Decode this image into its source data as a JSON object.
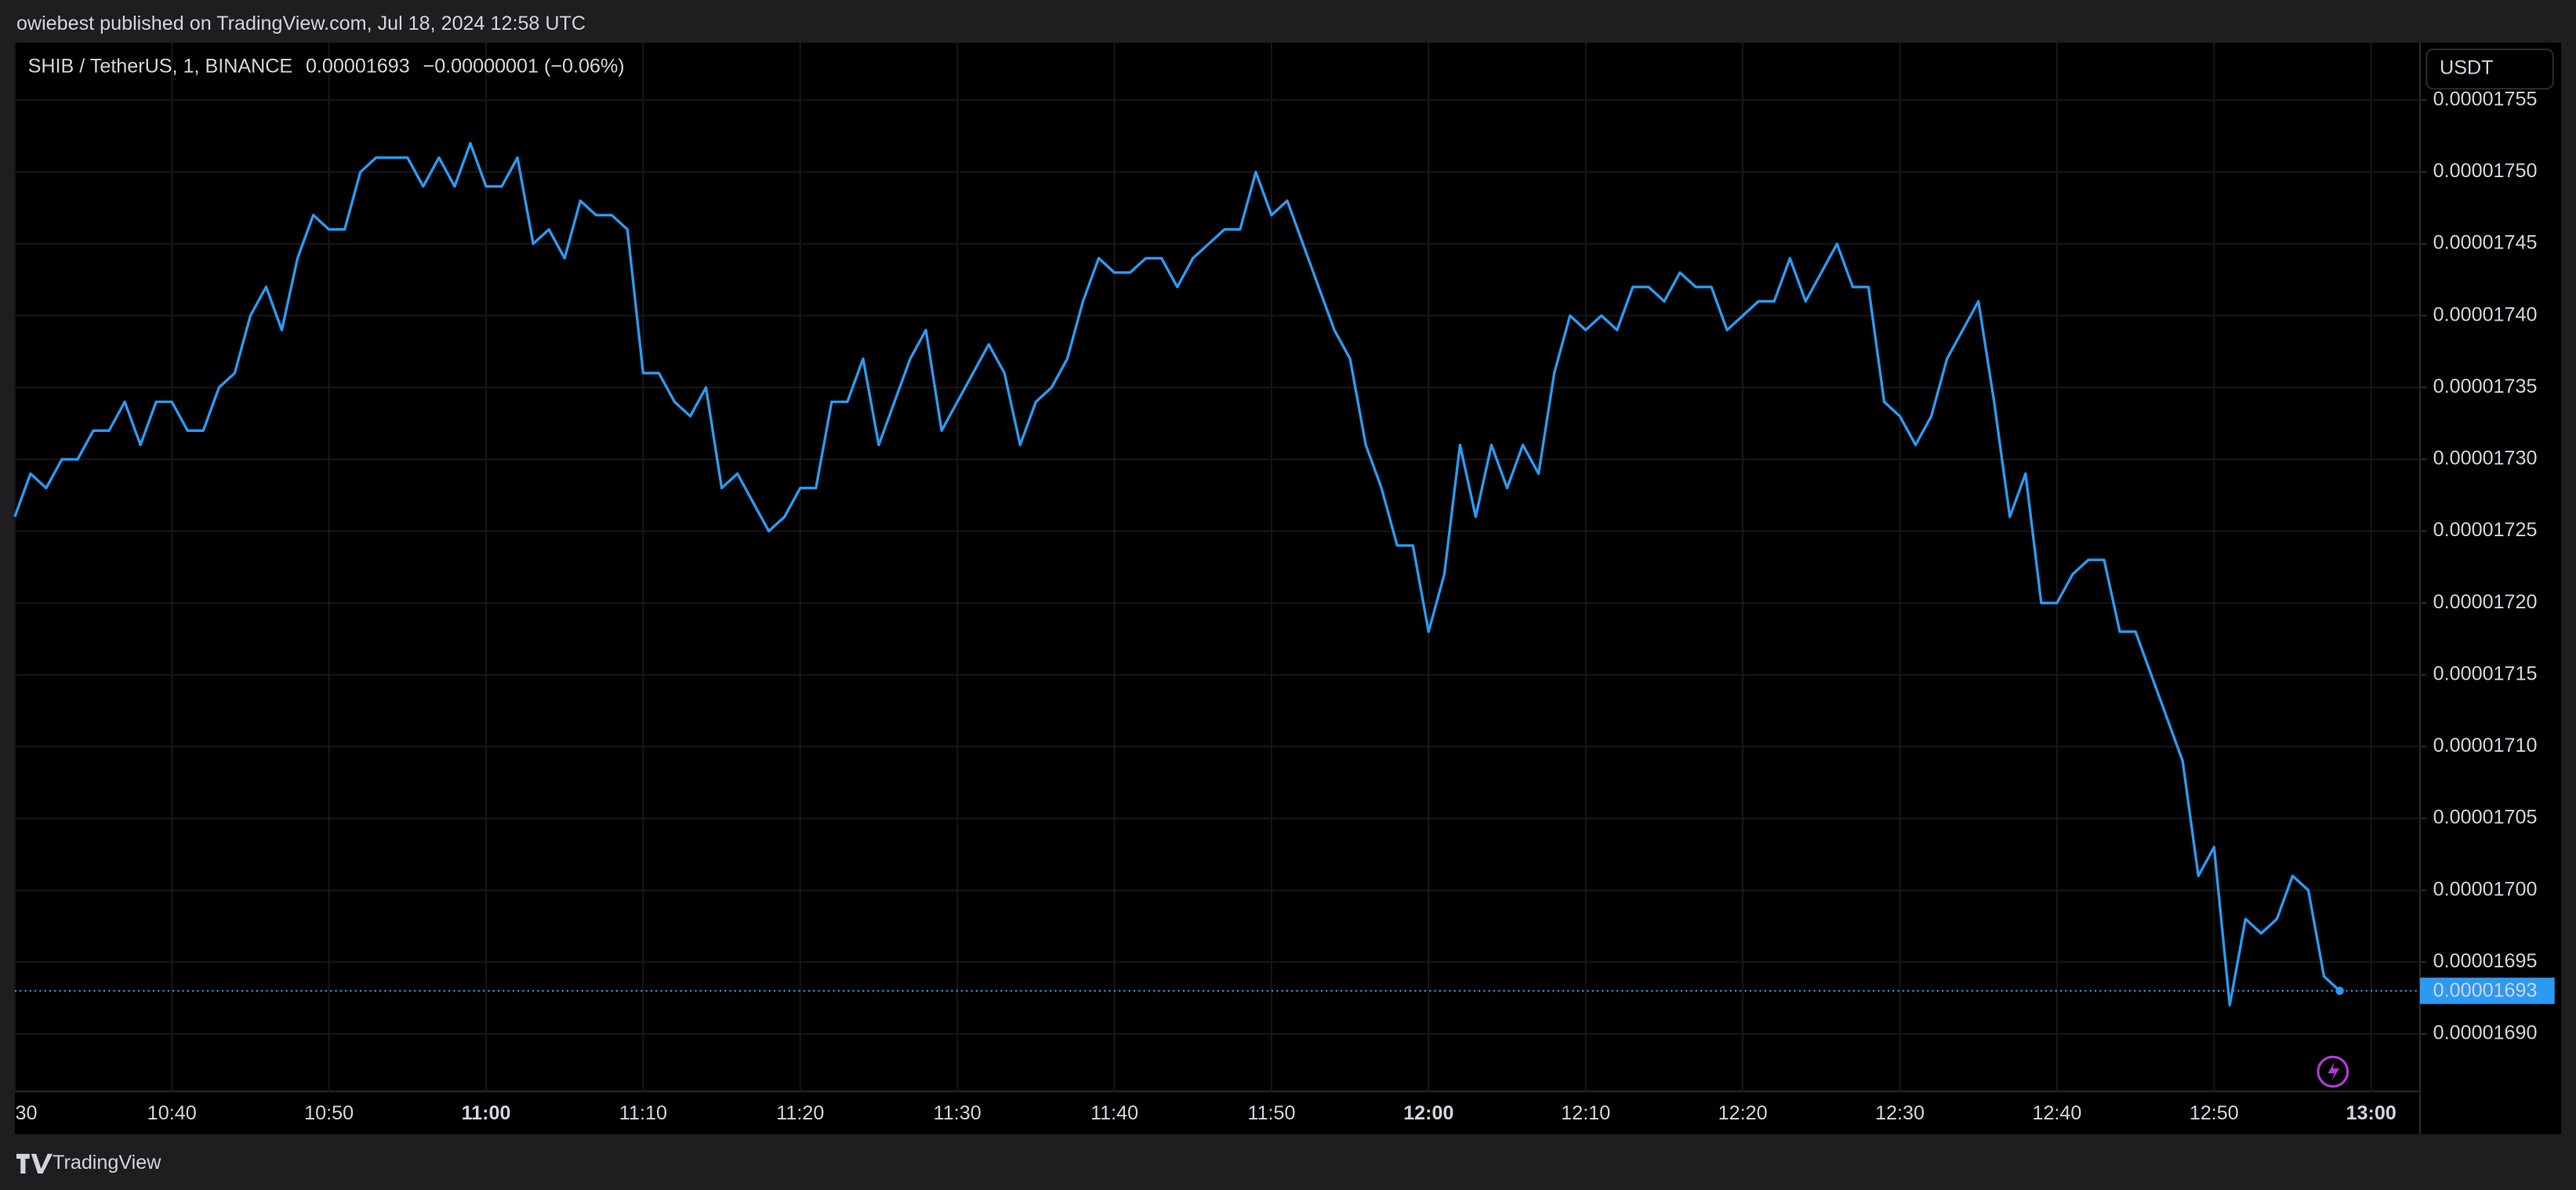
{
  "header": {
    "byline": "owiebest published on TradingView.com, Jul 18, 2024 12:58 UTC"
  },
  "chart_data": {
    "type": "line",
    "symbol": "SHIB / TetherUS, 1, BINANCE",
    "change": "−0.00000001 (−0.06%)",
    "currency": "USDT",
    "x": [
      "10:30",
      "10:31",
      "10:32",
      "10:33",
      "10:34",
      "10:35",
      "10:36",
      "10:37",
      "10:38",
      "10:39",
      "10:40",
      "10:41",
      "10:42",
      "10:43",
      "10:44",
      "10:45",
      "10:46",
      "10:47",
      "10:48",
      "10:49",
      "10:50",
      "10:51",
      "10:52",
      "10:53",
      "10:54",
      "10:55",
      "10:56",
      "10:57",
      "10:58",
      "10:59",
      "11:00",
      "11:01",
      "11:02",
      "11:03",
      "11:04",
      "11:05",
      "11:06",
      "11:07",
      "11:08",
      "11:09",
      "11:10",
      "11:11",
      "11:12",
      "11:13",
      "11:14",
      "11:15",
      "11:16",
      "11:17",
      "11:18",
      "11:19",
      "11:20",
      "11:21",
      "11:22",
      "11:23",
      "11:24",
      "11:25",
      "11:26",
      "11:27",
      "11:28",
      "11:29",
      "11:30",
      "11:31",
      "11:32",
      "11:33",
      "11:34",
      "11:35",
      "11:36",
      "11:37",
      "11:38",
      "11:39",
      "11:40",
      "11:41",
      "11:42",
      "11:43",
      "11:44",
      "11:45",
      "11:46",
      "11:47",
      "11:48",
      "11:49",
      "11:50",
      "11:51",
      "11:52",
      "11:53",
      "11:54",
      "11:55",
      "11:56",
      "11:57",
      "11:58",
      "11:59",
      "12:00",
      "12:01",
      "12:02",
      "12:03",
      "12:04",
      "12:05",
      "12:06",
      "12:07",
      "12:08",
      "12:09",
      "12:10",
      "12:11",
      "12:12",
      "12:13",
      "12:14",
      "12:15",
      "12:16",
      "12:17",
      "12:18",
      "12:19",
      "12:20",
      "12:21",
      "12:22",
      "12:23",
      "12:24",
      "12:25",
      "12:26",
      "12:27",
      "12:28",
      "12:29",
      "12:30",
      "12:31",
      "12:32",
      "12:33",
      "12:34",
      "12:35",
      "12:36",
      "12:37",
      "12:38",
      "12:39",
      "12:40",
      "12:41",
      "12:42",
      "12:43",
      "12:44",
      "12:45",
      "12:46",
      "12:47",
      "12:48",
      "12:49",
      "12:50",
      "12:51",
      "12:52",
      "12:53",
      "12:54",
      "12:55",
      "12:56",
      "12:57",
      "12:58"
    ],
    "series": [
      {
        "name": "SHIB / TetherUS",
        "color": "#2b9af3",
        "values": [
          1.726e-05,
          1.729e-05,
          1.728e-05,
          1.73e-05,
          1.73e-05,
          1.732e-05,
          1.732e-05,
          1.734e-05,
          1.731e-05,
          1.734e-05,
          1.734e-05,
          1.732e-05,
          1.732e-05,
          1.735e-05,
          1.736e-05,
          1.74e-05,
          1.742e-05,
          1.739e-05,
          1.744e-05,
          1.747e-05,
          1.746e-05,
          1.746e-05,
          1.75e-05,
          1.751e-05,
          1.751e-05,
          1.751e-05,
          1.749e-05,
          1.751e-05,
          1.749e-05,
          1.752e-05,
          1.749e-05,
          1.749e-05,
          1.751e-05,
          1.745e-05,
          1.746e-05,
          1.744e-05,
          1.748e-05,
          1.747e-05,
          1.747e-05,
          1.746e-05,
          1.736e-05,
          1.736e-05,
          1.734e-05,
          1.733e-05,
          1.735e-05,
          1.728e-05,
          1.729e-05,
          1.727e-05,
          1.725e-05,
          1.726e-05,
          1.728e-05,
          1.728e-05,
          1.734e-05,
          1.734e-05,
          1.737e-05,
          1.731e-05,
          1.734e-05,
          1.737e-05,
          1.739e-05,
          1.732e-05,
          1.734e-05,
          1.736e-05,
          1.738e-05,
          1.736e-05,
          1.731e-05,
          1.734e-05,
          1.735e-05,
          1.737e-05,
          1.741e-05,
          1.744e-05,
          1.743e-05,
          1.743e-05,
          1.744e-05,
          1.744e-05,
          1.742e-05,
          1.744e-05,
          1.745e-05,
          1.746e-05,
          1.746e-05,
          1.75e-05,
          1.747e-05,
          1.748e-05,
          1.745e-05,
          1.742e-05,
          1.739e-05,
          1.737e-05,
          1.731e-05,
          1.728e-05,
          1.724e-05,
          1.724e-05,
          1.718e-05,
          1.722e-05,
          1.731e-05,
          1.726e-05,
          1.731e-05,
          1.728e-05,
          1.731e-05,
          1.729e-05,
          1.736e-05,
          1.74e-05,
          1.739e-05,
          1.74e-05,
          1.739e-05,
          1.742e-05,
          1.742e-05,
          1.741e-05,
          1.743e-05,
          1.742e-05,
          1.742e-05,
          1.739e-05,
          1.74e-05,
          1.741e-05,
          1.741e-05,
          1.744e-05,
          1.741e-05,
          1.743e-05,
          1.745e-05,
          1.742e-05,
          1.742e-05,
          1.734e-05,
          1.733e-05,
          1.731e-05,
          1.733e-05,
          1.737e-05,
          1.739e-05,
          1.741e-05,
          1.734e-05,
          1.726e-05,
          1.729e-05,
          1.72e-05,
          1.72e-05,
          1.722e-05,
          1.723e-05,
          1.723e-05,
          1.718e-05,
          1.718e-05,
          1.715e-05,
          1.712e-05,
          1.709e-05,
          1.701e-05,
          1.703e-05,
          1.692e-05,
          1.698e-05,
          1.697e-05,
          1.698e-05,
          1.701e-05,
          1.7e-05,
          1.694e-05,
          1.693e-05
        ]
      }
    ],
    "xlim": [
      "10:30",
      "13:03"
    ],
    "xticks": [
      {
        "value": "10:30",
        "label": "30"
      },
      "10:40",
      "10:50",
      "11:00",
      "11:10",
      "11:20",
      "11:30",
      "11:40",
      "11:50",
      "12:00",
      "12:10",
      "12:20",
      "12:30",
      "12:40",
      "12:50",
      "13:00"
    ],
    "ylim": [
      1.686e-05,
      1.759e-05
    ],
    "yticks": [
      {
        "value": 1.69e-05,
        "label": "0.00001690"
      },
      {
        "value": 1.695e-05,
        "label": "0.00001695"
      },
      {
        "value": 1.7e-05,
        "label": "0.00001700"
      },
      {
        "value": 1.705e-05,
        "label": "0.00001705"
      },
      {
        "value": 1.71e-05,
        "label": "0.00001710"
      },
      {
        "value": 1.715e-05,
        "label": "0.00001715"
      },
      {
        "value": 1.72e-05,
        "label": "0.00001720"
      },
      {
        "value": 1.725e-05,
        "label": "0.00001725"
      },
      {
        "value": 1.73e-05,
        "label": "0.00001730"
      },
      {
        "value": 1.735e-05,
        "label": "0.00001735"
      },
      {
        "value": 1.74e-05,
        "label": "0.00001740"
      },
      {
        "value": 1.745e-05,
        "label": "0.00001745"
      },
      {
        "value": 1.75e-05,
        "label": "0.00001750"
      },
      {
        "value": 1.755e-05,
        "label": "0.00001755"
      }
    ],
    "grid": true
  },
  "footer": {
    "brand": "TradingView"
  }
}
